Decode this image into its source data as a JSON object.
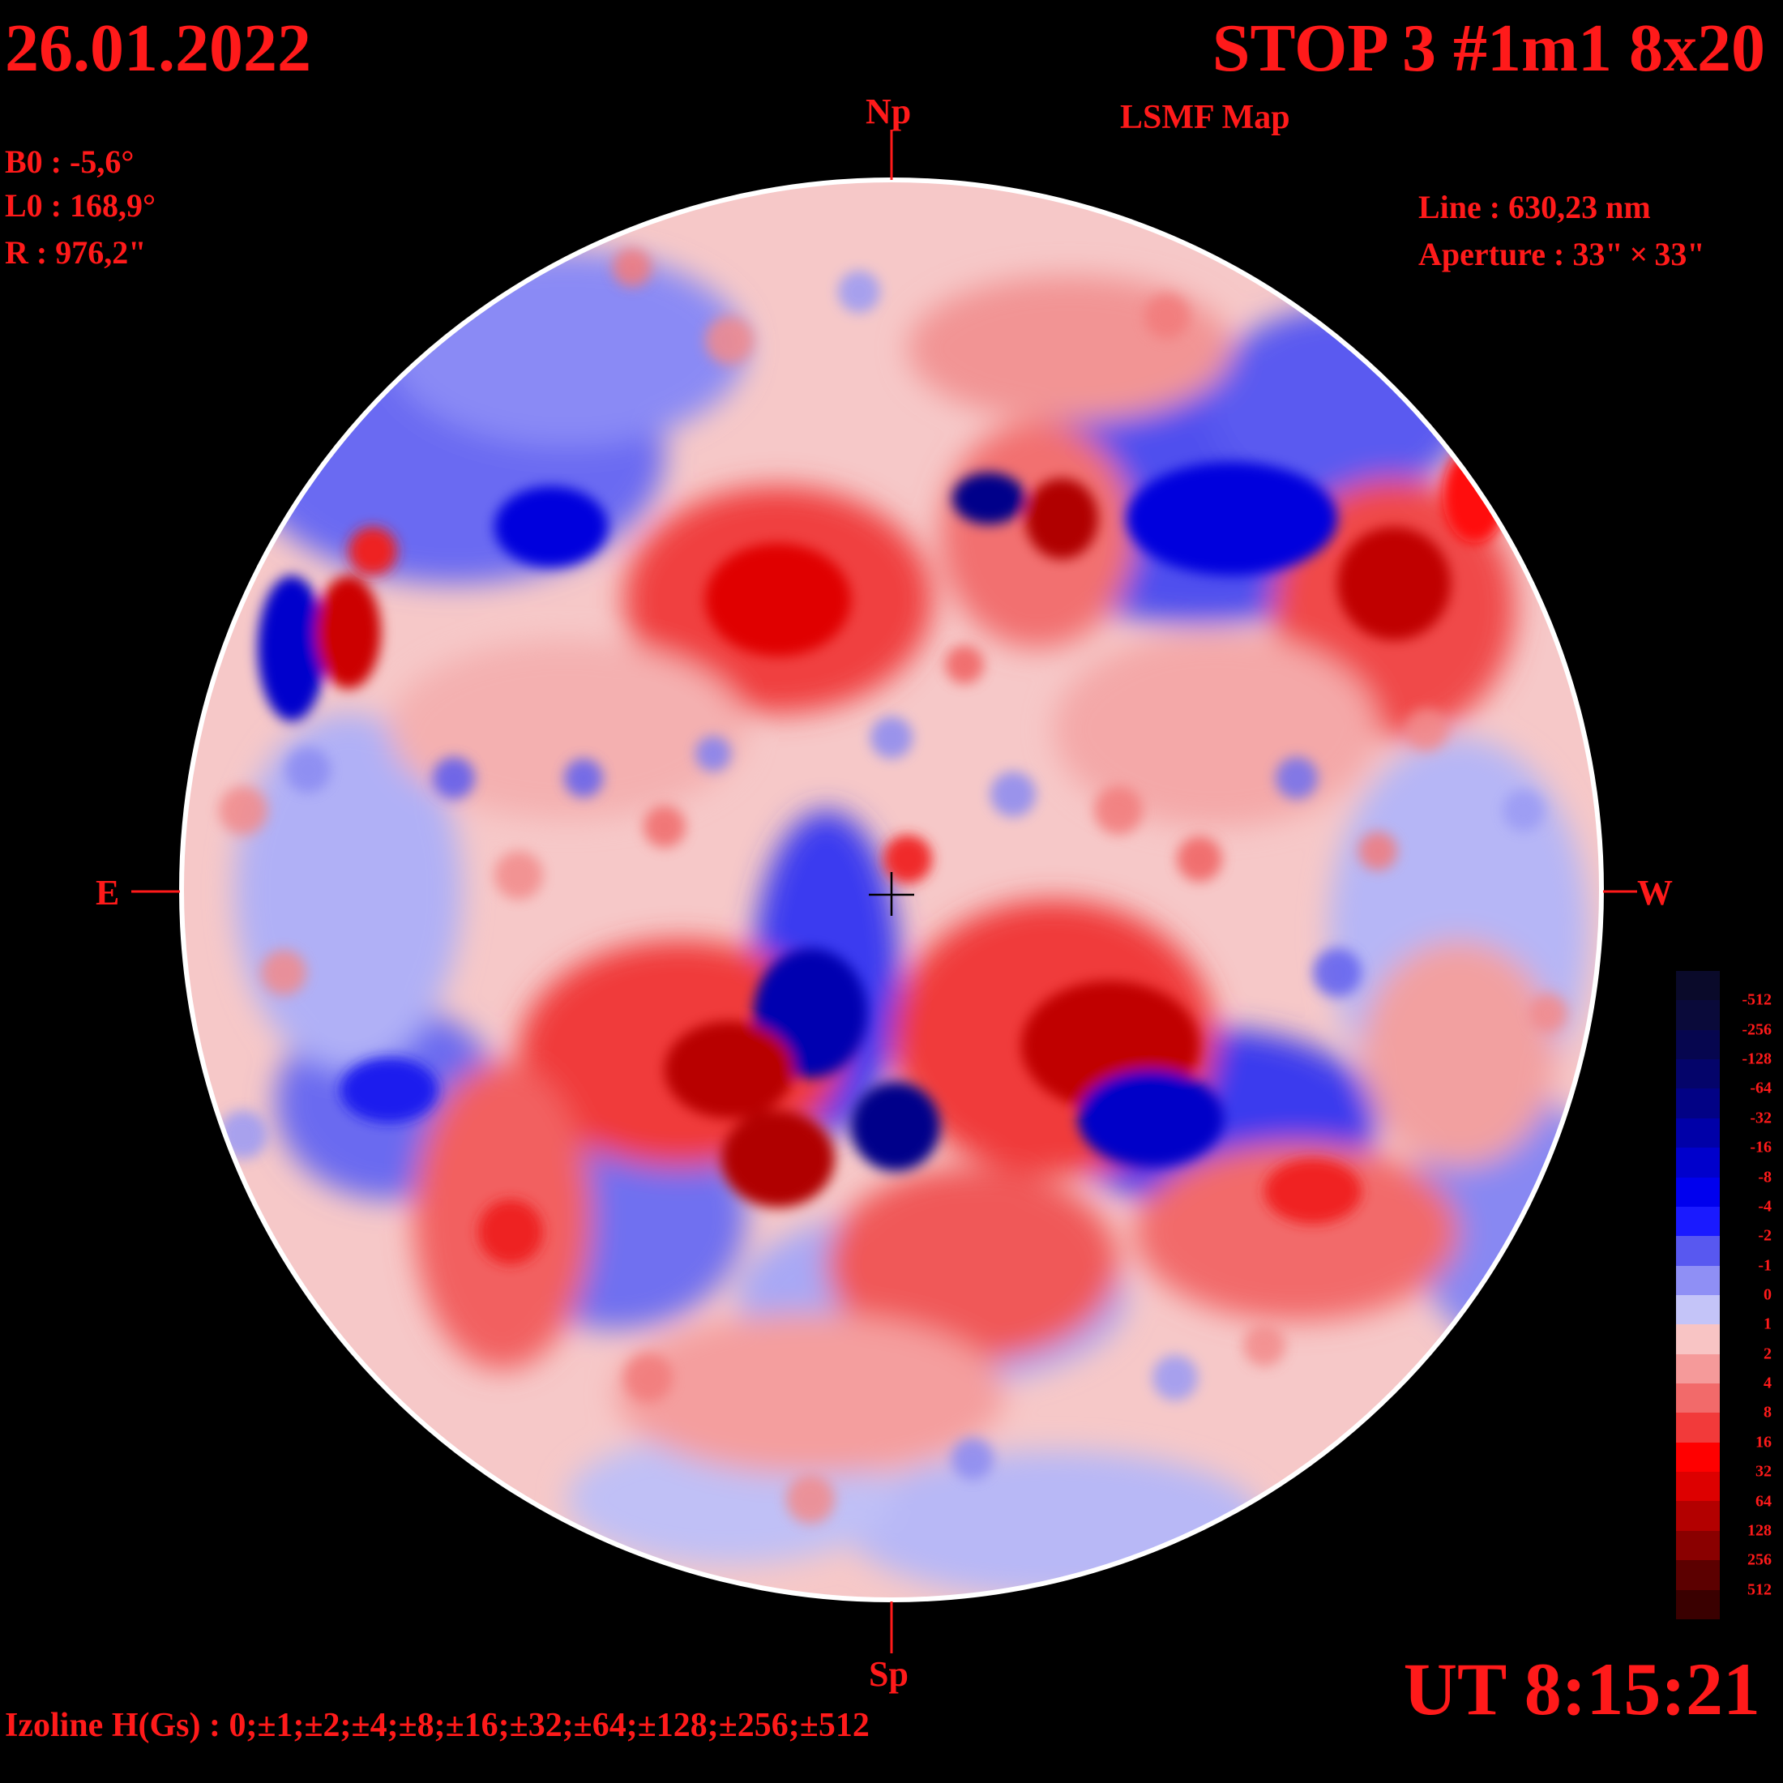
{
  "header": {
    "date": "26.01.2022",
    "title": "STOP 3 #1m1 8x20",
    "subtitle": "LSMF  Map"
  },
  "params": {
    "b0": "B0 : -5,6°",
    "l0": "L0 : 168,9°",
    "r": "R  : 976,2\"",
    "line": "Line :  630,23 nm",
    "aperture": "Aperture : 33\" × 33\""
  },
  "directions": {
    "north": "Np",
    "south": "Sp",
    "east": "E",
    "west": "W"
  },
  "time": "UT 8:15:21",
  "izoline": "Izoline H(Gs) : 0;±1;±2;±4;±8;±16;±32;±64;±128;±256;±512",
  "colorbar": {
    "labels": [
      "-512",
      "-256",
      "-128",
      "-64",
      "-32",
      "-16",
      "-8",
      "-4",
      "-2",
      "-1",
      "0",
      "1",
      "2",
      "4",
      "8",
      "16",
      "32",
      "64",
      "128",
      "256",
      "512"
    ],
    "colors": [
      "#0a0a3a",
      "#06064f",
      "#04046a",
      "#020285",
      "#0000a8",
      "#0000cc",
      "#0000ee",
      "#1a1aff",
      "#5858f0",
      "#8f8ff5",
      "#c4c4f8",
      "#f8c4c4",
      "#f59a9a",
      "#f26a6a",
      "#f23a3a",
      "#ff0000",
      "#dd0000",
      "#b30000",
      "#8a0000",
      "#5c0000",
      "#3a0000"
    ]
  },
  "map": {
    "disk_color": "#ffffff",
    "background": "#000000",
    "positive_color": "#e41414",
    "negative_color": "#1414e8"
  }
}
